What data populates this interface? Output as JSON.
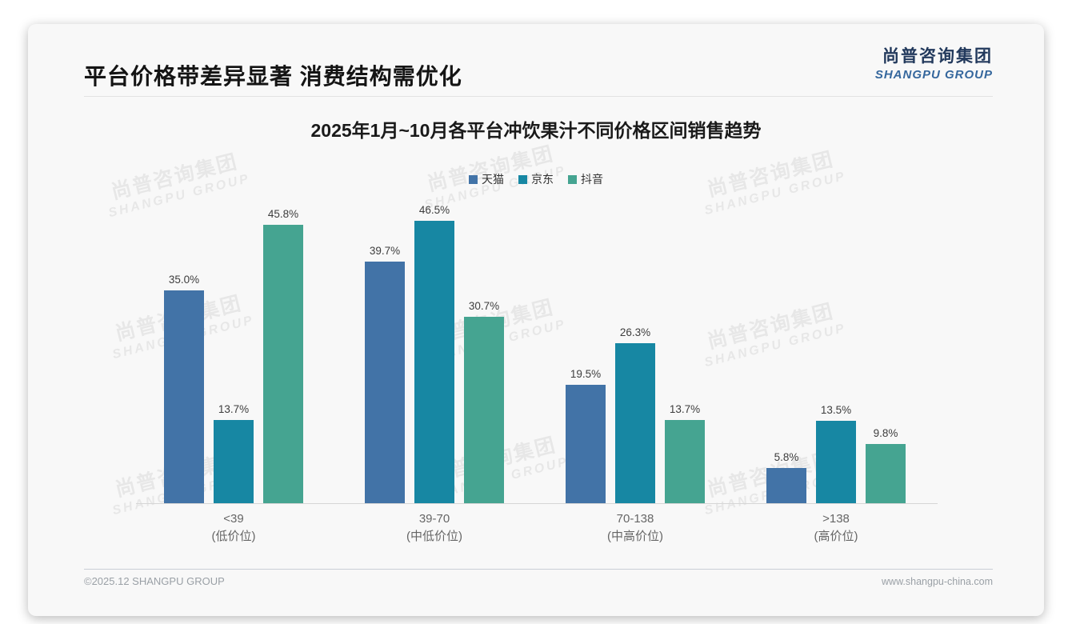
{
  "header": {
    "title": "平台价格带差异显著 消费结构需优化",
    "logo_cn": "尚普咨询集团",
    "logo_en": "SHANGPU GROUP"
  },
  "watermark": {
    "line1": "尚普咨询集团",
    "line2": "SHANGPU GROUP"
  },
  "chart_data": {
    "type": "bar",
    "title": "2025年1月~10月各平台冲饮果汁不同价格区间销售趋势",
    "categories": [
      "<39",
      "39-70",
      "70-138",
      ">138"
    ],
    "category_sublabels": [
      "(低价位)",
      "(中低价位)",
      "(中高价位)",
      "(高价位)"
    ],
    "series": [
      {
        "name": "天猫",
        "color": "#4273a7",
        "values": [
          35.0,
          39.7,
          19.5,
          5.8
        ]
      },
      {
        "name": "京东",
        "color": "#1787a3",
        "values": [
          13.7,
          46.5,
          26.3,
          13.5
        ]
      },
      {
        "name": "抖音",
        "color": "#45a491",
        "values": [
          45.8,
          30.7,
          13.7,
          9.8
        ]
      }
    ],
    "value_suffix": "%",
    "ylim": [
      0,
      50
    ],
    "grid": false,
    "legend_position": "top",
    "xlabel": "",
    "ylabel": ""
  },
  "footer": {
    "left": "©2025.12 SHANGPU GROUP",
    "right": "www.shangpu-china.com"
  }
}
